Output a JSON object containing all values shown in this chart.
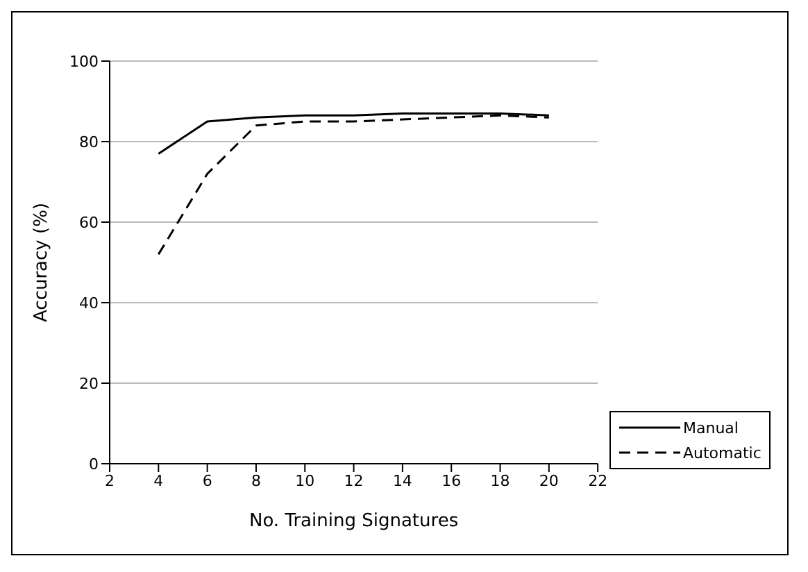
{
  "chart_data": {
    "type": "line",
    "xlabel": "No. Training Signatures",
    "ylabel": "Accuracy (%)",
    "x": [
      4,
      6,
      8,
      10,
      12,
      14,
      16,
      18,
      20
    ],
    "series": [
      {
        "name": "Manual",
        "color": "#000000",
        "line_style": "solid",
        "values": [
          77,
          85,
          86,
          86.5,
          86.5,
          87,
          87,
          87,
          86.5
        ]
      },
      {
        "name": "Automatic",
        "color": "#000000",
        "line_style": "dashed",
        "values": [
          52,
          72,
          84,
          85,
          85,
          85.5,
          86,
          86.5,
          86
        ]
      }
    ],
    "xlim": [
      2,
      22
    ],
    "xticks": [
      2,
      4,
      6,
      8,
      10,
      12,
      14,
      16,
      18,
      20,
      22
    ],
    "ylim": [
      0,
      100
    ],
    "yticks": [
      0,
      20,
      40,
      60,
      80,
      100
    ],
    "grid": "y",
    "legend": "bottom right",
    "marker": "none"
  }
}
